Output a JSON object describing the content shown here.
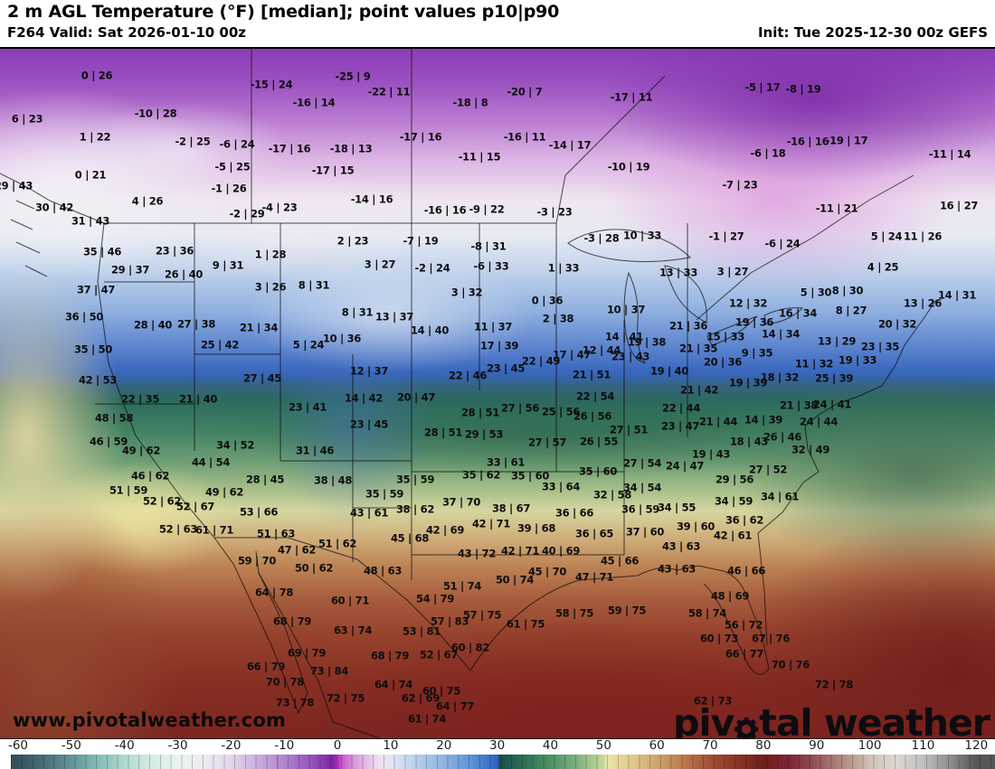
{
  "header": {
    "title": "2 m AGL Temperature (°F) [median]; point values p10|p90",
    "valid_label": "F264 Valid: Sat 2026-01-10 00z",
    "init_label": "Init: Tue 2025-12-30 00z GEFS"
  },
  "map": {
    "watermark": "www.pivotalweather.com",
    "logo": {
      "prefix": "piv",
      "suffix": "tal weather"
    },
    "points": [
      [
        107,
        82,
        "0 | 26"
      ],
      [
        300,
        92,
        "-15 | 24"
      ],
      [
        30,
        130,
        "6 | 23"
      ],
      [
        172,
        124,
        "-10 | 28"
      ],
      [
        347,
        112,
        "-16 | 14"
      ],
      [
        105,
        150,
        "1 | 22"
      ],
      [
        213,
        155,
        "-2 | 25"
      ],
      [
        262,
        158,
        "-6 | 24"
      ],
      [
        320,
        163,
        "-17 | 16"
      ],
      [
        100,
        192,
        "0 | 21"
      ],
      [
        257,
        183,
        "-5 | 25"
      ],
      [
        253,
        207,
        "-1 | 26"
      ],
      [
        15,
        204,
        "29 | 43"
      ],
      [
        163,
        221,
        "4 | 26"
      ],
      [
        60,
        228,
        "30 | 42"
      ],
      [
        100,
        243,
        "31 | 43"
      ],
      [
        273,
        235,
        "-2 | 29"
      ],
      [
        309,
        228,
        "-4 | 23"
      ],
      [
        113,
        277,
        "35 | 46"
      ],
      [
        390,
        83,
        "-25 | 9"
      ],
      [
        430,
        100,
        "-22 | 11"
      ],
      [
        520,
        112,
        "-18 | 8"
      ],
      [
        580,
        100,
        "-20 | 7"
      ],
      [
        698,
        106,
        "-17 | 11"
      ],
      [
        465,
        150,
        "-17 | 16"
      ],
      [
        580,
        150,
        "-16 | 11"
      ],
      [
        630,
        159,
        "-14 | 17"
      ],
      [
        388,
        163,
        "-18 | 13"
      ],
      [
        368,
        187,
        "-17 | 15"
      ],
      [
        530,
        172,
        "-11 | 15"
      ],
      [
        695,
        183,
        "-10 | 19"
      ],
      [
        411,
        219,
        "-14 | 16"
      ],
      [
        492,
        231,
        "-16 | 16"
      ],
      [
        538,
        230,
        "-9 | 22"
      ],
      [
        613,
        233,
        "-3 | 23"
      ],
      [
        843,
        95,
        "-5 | 17"
      ],
      [
        888,
        97,
        "-8 | 19"
      ],
      [
        893,
        155,
        "-16 | 16"
      ],
      [
        936,
        154,
        "-19 | 17"
      ],
      [
        849,
        168,
        "-6 | 18"
      ],
      [
        1050,
        169,
        "-11 | 14"
      ],
      [
        818,
        203,
        "-7 | 23"
      ],
      [
        925,
        229,
        "-11 | 21"
      ],
      [
        1060,
        226,
        "16 | 27"
      ],
      [
        193,
        276,
        "23 | 36"
      ],
      [
        299,
        280,
        "1 | 28"
      ],
      [
        390,
        265,
        "2 | 23"
      ],
      [
        465,
        265,
        "-7 | 19"
      ],
      [
        540,
        271,
        "-8 | 31"
      ],
      [
        665,
        262,
        "-3 | 28"
      ],
      [
        710,
        259,
        "10 | 33"
      ],
      [
        803,
        260,
        "-1 | 27"
      ],
      [
        980,
        260,
        "5 | 24"
      ],
      [
        1020,
        260,
        "11 | 26"
      ],
      [
        865,
        268,
        "-6 | 24"
      ],
      [
        144,
        297,
        "29 | 37"
      ],
      [
        252,
        292,
        "9 | 31"
      ],
      [
        203,
        302,
        "26 | 40"
      ],
      [
        420,
        291,
        "3 | 27"
      ],
      [
        478,
        295,
        "-2 | 24"
      ],
      [
        543,
        293,
        "-6 | 33"
      ],
      [
        623,
        295,
        "1 | 33"
      ],
      [
        750,
        300,
        "13 | 33"
      ],
      [
        810,
        299,
        "3 | 27"
      ],
      [
        976,
        294,
        "4 | 25"
      ],
      [
        106,
        319,
        "37 | 47"
      ],
      [
        299,
        316,
        "3 | 26"
      ],
      [
        347,
        314,
        "8 | 31"
      ],
      [
        516,
        322,
        "3 | 32"
      ],
      [
        902,
        322,
        "5 | 30"
      ],
      [
        937,
        320,
        "8 | 30"
      ],
      [
        1058,
        325,
        "14 | 31"
      ],
      [
        605,
        331,
        "0 | 36"
      ],
      [
        827,
        334,
        "12 | 32"
      ],
      [
        1020,
        334,
        "13 | 26"
      ],
      [
        93,
        349,
        "36 | 50"
      ],
      [
        395,
        344,
        "8 | 31"
      ],
      [
        436,
        349,
        "13 | 37"
      ],
      [
        617,
        351,
        "2 | 38"
      ],
      [
        692,
        341,
        "10 | 37"
      ],
      [
        941,
        342,
        "8 | 27"
      ],
      [
        882,
        345,
        "16 | 34"
      ],
      [
        475,
        364,
        "14 | 40"
      ],
      [
        545,
        360,
        "11 | 37"
      ],
      [
        834,
        355,
        "19 | 36"
      ],
      [
        761,
        359,
        "21 | 36"
      ],
      [
        992,
        357,
        "20 | 32"
      ],
      [
        169,
        358,
        "28 | 40"
      ],
      [
        217,
        357,
        "27 | 38"
      ],
      [
        286,
        361,
        "21 | 34"
      ],
      [
        378,
        373,
        "10 | 36"
      ],
      [
        690,
        371,
        "14 | 41"
      ],
      [
        715,
        377,
        "19 | 38"
      ],
      [
        802,
        371,
        "15 | 33"
      ],
      [
        863,
        368,
        "14 | 34"
      ],
      [
        243,
        380,
        "25 | 42"
      ],
      [
        341,
        380,
        "5 | 24"
      ],
      [
        552,
        381,
        "17 | 39"
      ],
      [
        632,
        391,
        "17 | 47"
      ],
      [
        665,
        386,
        "12 | 44"
      ],
      [
        925,
        376,
        "13 | 29"
      ],
      [
        973,
        382,
        "23 | 35"
      ],
      [
        103,
        385,
        "35 | 50"
      ],
      [
        598,
        398,
        "22 | 49"
      ],
      [
        697,
        393,
        "23 | 43"
      ],
      [
        772,
        384,
        "21 | 35"
      ],
      [
        837,
        389,
        "9 | 35"
      ],
      [
        948,
        397,
        "19 | 33"
      ],
      [
        799,
        399,
        "20 | 36"
      ],
      [
        900,
        401,
        "11 | 32"
      ],
      [
        408,
        409,
        "12 | 37"
      ],
      [
        559,
        406,
        "23 | 45"
      ],
      [
        740,
        409,
        "19 | 40"
      ],
      [
        108,
        419,
        "42 | 53"
      ],
      [
        290,
        417,
        "27 | 45"
      ],
      [
        517,
        414,
        "22 | 46"
      ],
      [
        654,
        413,
        "21 | 51"
      ],
      [
        862,
        416,
        "18 | 32"
      ],
      [
        922,
        417,
        "25 | 39"
      ],
      [
        827,
        422,
        "19 | 39"
      ],
      [
        773,
        430,
        "21 | 42"
      ],
      [
        155,
        440,
        "22 | 35"
      ],
      [
        219,
        440,
        "21 | 40"
      ],
      [
        340,
        449,
        "23 | 41"
      ],
      [
        402,
        439,
        "14 | 42"
      ],
      [
        460,
        438,
        "20 | 47"
      ],
      [
        658,
        437,
        "22 | 54"
      ],
      [
        753,
        450,
        "22 | 44"
      ],
      [
        883,
        447,
        "21 | 38"
      ],
      [
        920,
        446,
        "24 | 41"
      ],
      [
        126,
        461,
        "48 | 58"
      ],
      [
        531,
        455,
        "28 | 51"
      ],
      [
        575,
        450,
        "27 | 56"
      ],
      [
        620,
        454,
        "25 | 56"
      ],
      [
        655,
        459,
        "26 | 56"
      ],
      [
        794,
        465,
        "21 | 44"
      ],
      [
        844,
        463,
        "14 | 39"
      ],
      [
        752,
        470,
        "23 | 47"
      ],
      [
        905,
        465,
        "24 | 44"
      ],
      [
        120,
        487,
        "46 | 59"
      ],
      [
        156,
        497,
        "49 | 62"
      ],
      [
        260,
        491,
        "34 | 52"
      ],
      [
        348,
        497,
        "31 | 46"
      ],
      [
        408,
        468,
        "23 | 45"
      ],
      [
        490,
        477,
        "28 | 51"
      ],
      [
        535,
        479,
        "29 | 53"
      ],
      [
        695,
        474,
        "27 | 51"
      ],
      [
        605,
        488,
        "27 | 57"
      ],
      [
        662,
        487,
        "26 | 55"
      ],
      [
        865,
        482,
        "26 | 46"
      ],
      [
        828,
        487,
        "18 | 43"
      ],
      [
        896,
        496,
        "32 | 49"
      ],
      [
        786,
        501,
        "19 | 43"
      ],
      [
        233,
        510,
        "44 | 54"
      ],
      [
        559,
        510,
        "33 | 61"
      ],
      [
        710,
        511,
        "27 | 54"
      ],
      [
        757,
        514,
        "24 | 47"
      ],
      [
        849,
        518,
        "27 | 52"
      ],
      [
        166,
        525,
        "46 | 62"
      ],
      [
        293,
        529,
        "28 | 45"
      ],
      [
        532,
        524,
        "35 | 62"
      ],
      [
        586,
        525,
        "35 | 60"
      ],
      [
        459,
        529,
        "35 | 59"
      ],
      [
        368,
        530,
        "38 | 48"
      ],
      [
        661,
        520,
        "35 | 60"
      ],
      [
        812,
        529,
        "29 | 56"
      ],
      [
        142,
        541,
        "51 | 59"
      ],
      [
        248,
        543,
        "49 | 62"
      ],
      [
        620,
        537,
        "33 | 64"
      ],
      [
        677,
        546,
        "32 | 58"
      ],
      [
        710,
        538,
        "34 | 54"
      ],
      [
        179,
        553,
        "52 | 62"
      ],
      [
        216,
        559,
        "52 | 67"
      ],
      [
        425,
        545,
        "35 | 59"
      ],
      [
        510,
        554,
        "37 | 70"
      ],
      [
        565,
        561,
        "38 | 67"
      ],
      [
        862,
        548,
        "34 | 61"
      ],
      [
        811,
        553,
        "34 | 59"
      ],
      [
        748,
        560,
        "34 | 55"
      ],
      [
        286,
        565,
        "53 | 66"
      ],
      [
        408,
        566,
        "43 | 61"
      ],
      [
        459,
        562,
        "38 | 62"
      ],
      [
        635,
        566,
        "36 | 66"
      ],
      [
        708,
        562,
        "36 | 59"
      ],
      [
        823,
        574,
        "36 | 62"
      ],
      [
        197,
        584,
        "52 | 63"
      ],
      [
        237,
        585,
        "61 | 71"
      ],
      [
        305,
        589,
        "51 | 63"
      ],
      [
        543,
        578,
        "42 | 71"
      ],
      [
        593,
        583,
        "39 | 68"
      ],
      [
        492,
        585,
        "42 | 69"
      ],
      [
        657,
        589,
        "36 | 65"
      ],
      [
        713,
        587,
        "37 | 60"
      ],
      [
        769,
        581,
        "39 | 60"
      ],
      [
        328,
        607,
        "47 | 62"
      ],
      [
        453,
        594,
        "45 | 68"
      ],
      [
        373,
        600,
        "51 | 62"
      ],
      [
        810,
        591,
        "42 | 61"
      ],
      [
        753,
        603,
        "43 | 63"
      ],
      [
        284,
        619,
        "59 | 70"
      ],
      [
        527,
        611,
        "43 | 72"
      ],
      [
        575,
        608,
        "42 | 71"
      ],
      [
        620,
        608,
        "40 | 69"
      ],
      [
        685,
        619,
        "45 | 66"
      ],
      [
        347,
        627,
        "50 | 62"
      ],
      [
        423,
        630,
        "48 | 63"
      ],
      [
        605,
        631,
        "45 | 70"
      ],
      [
        569,
        640,
        "50 | 74"
      ],
      [
        657,
        637,
        "47 | 71"
      ],
      [
        748,
        628,
        "43 | 63"
      ],
      [
        825,
        630,
        "46 | 66"
      ],
      [
        511,
        647,
        "51 | 74"
      ],
      [
        303,
        654,
        "64 | 78"
      ],
      [
        387,
        663,
        "60 | 71"
      ],
      [
        481,
        661,
        "54 | 79"
      ],
      [
        807,
        658,
        "48 | 69"
      ],
      [
        533,
        679,
        "57 | 75"
      ],
      [
        635,
        677,
        "58 | 75"
      ],
      [
        693,
        674,
        "59 | 75"
      ],
      [
        782,
        677,
        "58 | 74"
      ],
      [
        497,
        686,
        "57 | 83"
      ],
      [
        581,
        689,
        "61 | 75"
      ],
      [
        323,
        686,
        "68 | 79"
      ],
      [
        390,
        696,
        "63 | 74"
      ],
      [
        466,
        697,
        "53 | 81"
      ],
      [
        822,
        690,
        "56 | 72"
      ],
      [
        795,
        705,
        "60 | 73"
      ],
      [
        852,
        705,
        "67 | 76"
      ],
      [
        520,
        715,
        "60 | 82"
      ],
      [
        431,
        724,
        "68 | 79"
      ],
      [
        485,
        723,
        "52 | 67"
      ],
      [
        339,
        721,
        "69 | 79"
      ],
      [
        823,
        722,
        "66 | 77"
      ],
      [
        294,
        736,
        "66 | 79"
      ],
      [
        364,
        741,
        "73 | 84"
      ],
      [
        874,
        734,
        "70 | 76"
      ],
      [
        435,
        756,
        "64 | 74"
      ],
      [
        315,
        753,
        "70 | 78"
      ],
      [
        382,
        771,
        "72 | 75"
      ],
      [
        465,
        771,
        "62 | 69"
      ],
      [
        488,
        763,
        "60 | 75"
      ],
      [
        922,
        756,
        "72 | 78"
      ],
      [
        326,
        776,
        "73 | 78"
      ],
      [
        788,
        774,
        "62 | 73"
      ],
      [
        503,
        780,
        "64 | 77"
      ],
      [
        472,
        794,
        "61 | 74"
      ]
    ]
  },
  "colorbar": {
    "min": -60,
    "max": 120,
    "ticks": [
      "-60",
      "-50",
      "-40",
      "-30",
      "-20",
      "-10",
      "0",
      "10",
      "20",
      "30",
      "40",
      "50",
      "60",
      "70",
      "80",
      "90",
      "100",
      "110",
      "120"
    ],
    "stops": [
      {
        "v": -60,
        "c": "#35505c"
      },
      {
        "v": -55,
        "c": "#4a7078"
      },
      {
        "v": -50,
        "c": "#619397"
      },
      {
        "v": -45,
        "c": "#84bcb4"
      },
      {
        "v": -40,
        "c": "#aed9d1"
      },
      {
        "v": -35,
        "c": "#d4ece5"
      },
      {
        "v": -30,
        "c": "#eaf3f0"
      },
      {
        "v": -25,
        "c": "#eeeaf2"
      },
      {
        "v": -20,
        "c": "#e2d6ec"
      },
      {
        "v": -15,
        "c": "#cbaede"
      },
      {
        "v": -10,
        "c": "#b083cc"
      },
      {
        "v": -5,
        "c": "#9755bd"
      },
      {
        "v": -1,
        "c": "#7f27a4"
      },
      {
        "v": 0,
        "c": "#a32cb5"
      },
      {
        "v": 0.5,
        "c": "#c44fca"
      },
      {
        "v": 3,
        "c": "#d795da"
      },
      {
        "v": 5,
        "c": "#e2b5e4"
      },
      {
        "v": 8,
        "c": "#eee2f1"
      },
      {
        "v": 10,
        "c": "#e0e7f4"
      },
      {
        "v": 15,
        "c": "#b6cfeb"
      },
      {
        "v": 20,
        "c": "#8db3e0"
      },
      {
        "v": 25,
        "c": "#5f94d4"
      },
      {
        "v": 30,
        "c": "#2c63c5"
      },
      {
        "v": 30.5,
        "c": "#174f49"
      },
      {
        "v": 35,
        "c": "#2d6f57"
      },
      {
        "v": 40,
        "c": "#4c9166"
      },
      {
        "v": 45,
        "c": "#7fb17e"
      },
      {
        "v": 50,
        "c": "#c6d89b"
      },
      {
        "v": 50.5,
        "c": "#e9e6a8"
      },
      {
        "v": 55,
        "c": "#e0cc8e"
      },
      {
        "v": 60,
        "c": "#cda56d"
      },
      {
        "v": 65,
        "c": "#bb7a4d"
      },
      {
        "v": 70,
        "c": "#a04f36"
      },
      {
        "v": 75,
        "c": "#8b3425"
      },
      {
        "v": 80,
        "c": "#701f1b"
      },
      {
        "v": 85,
        "c": "#7c2438"
      },
      {
        "v": 90,
        "c": "#96555a"
      },
      {
        "v": 95,
        "c": "#b28b80"
      },
      {
        "v": 100,
        "c": "#cfc0b5"
      },
      {
        "v": 105,
        "c": "#dcd8d4"
      },
      {
        "v": 110,
        "c": "#c0c0c0"
      },
      {
        "v": 115,
        "c": "#8f8f8f"
      },
      {
        "v": 120,
        "c": "#565656"
      }
    ]
  }
}
